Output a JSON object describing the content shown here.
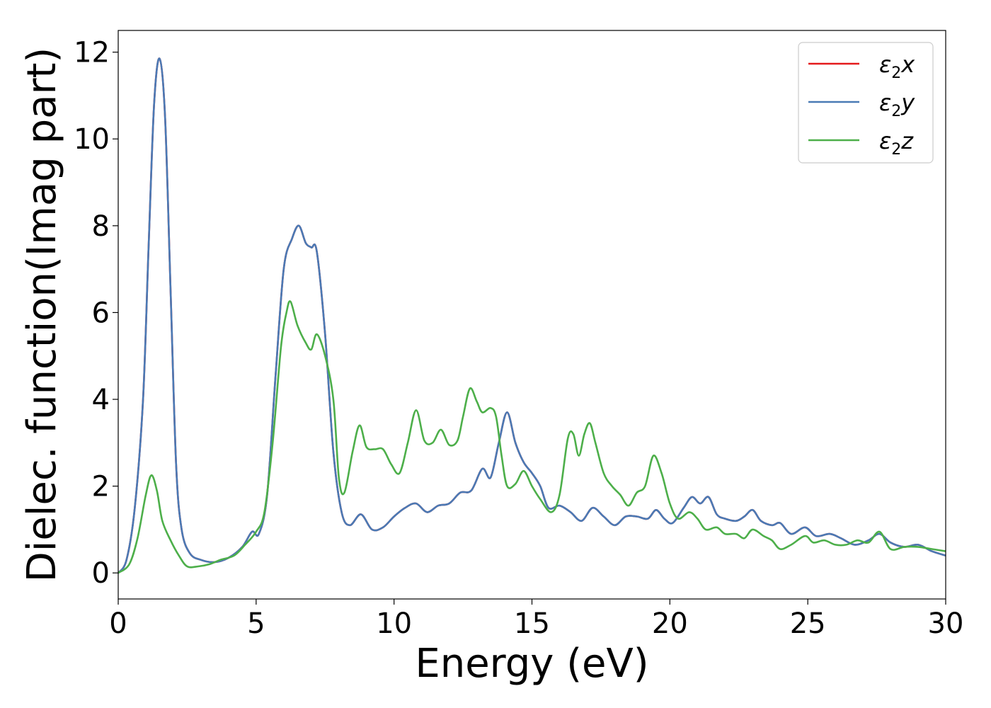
{
  "chart_data": {
    "type": "line",
    "title": "",
    "xlabel": "Energy (eV)",
    "ylabel": "Dielec. function(Imag part)",
    "xlim": [
      0,
      30
    ],
    "ylim": [
      -0.6,
      12.5
    ],
    "xticks": [
      0,
      5,
      10,
      15,
      20,
      25,
      30
    ],
    "yticks": [
      0,
      2,
      4,
      6,
      8,
      10,
      12
    ],
    "xtick_labels": [
      "0",
      "5",
      "10",
      "15",
      "20",
      "25",
      "30"
    ],
    "ytick_labels": [
      "0",
      "2",
      "4",
      "6",
      "8",
      "10",
      "12"
    ],
    "grid": false,
    "legend_position": "top-right",
    "series": [
      {
        "name": "ε2x",
        "label_parts": [
          "ε",
          "2",
          "x"
        ],
        "color": "#e41a1c",
        "points": [
          [
            0,
            0
          ],
          [
            0.3,
            0.3
          ],
          [
            0.6,
            1.5
          ],
          [
            0.9,
            4.0
          ],
          [
            1.1,
            7.5
          ],
          [
            1.3,
            10.8
          ],
          [
            1.5,
            11.85
          ],
          [
            1.7,
            10.5
          ],
          [
            1.9,
            6.5
          ],
          [
            2.1,
            2.5
          ],
          [
            2.3,
            1.0
          ],
          [
            2.6,
            0.45
          ],
          [
            3.0,
            0.3
          ],
          [
            3.5,
            0.25
          ],
          [
            4.0,
            0.35
          ],
          [
            4.5,
            0.6
          ],
          [
            4.85,
            0.95
          ],
          [
            5.1,
            0.9
          ],
          [
            5.4,
            1.8
          ],
          [
            5.7,
            4.5
          ],
          [
            6.0,
            7.0
          ],
          [
            6.3,
            7.7
          ],
          [
            6.55,
            8.0
          ],
          [
            6.8,
            7.6
          ],
          [
            7.0,
            7.5
          ],
          [
            7.2,
            7.4
          ],
          [
            7.5,
            5.5
          ],
          [
            7.8,
            2.8
          ],
          [
            8.1,
            1.4
          ],
          [
            8.4,
            1.1
          ],
          [
            8.8,
            1.35
          ],
          [
            9.2,
            1.0
          ],
          [
            9.6,
            1.05
          ],
          [
            10.0,
            1.3
          ],
          [
            10.4,
            1.5
          ],
          [
            10.8,
            1.6
          ],
          [
            11.2,
            1.4
          ],
          [
            11.6,
            1.55
          ],
          [
            12.0,
            1.6
          ],
          [
            12.4,
            1.85
          ],
          [
            12.8,
            1.9
          ],
          [
            13.2,
            2.4
          ],
          [
            13.5,
            2.2
          ],
          [
            13.8,
            3.0
          ],
          [
            14.1,
            3.7
          ],
          [
            14.4,
            3.0
          ],
          [
            14.7,
            2.55
          ],
          [
            15.0,
            2.3
          ],
          [
            15.3,
            2.0
          ],
          [
            15.6,
            1.5
          ],
          [
            16.0,
            1.55
          ],
          [
            16.4,
            1.4
          ],
          [
            16.8,
            1.2
          ],
          [
            17.2,
            1.5
          ],
          [
            17.6,
            1.3
          ],
          [
            18.0,
            1.1
          ],
          [
            18.4,
            1.3
          ],
          [
            18.8,
            1.3
          ],
          [
            19.2,
            1.25
          ],
          [
            19.5,
            1.45
          ],
          [
            19.8,
            1.25
          ],
          [
            20.1,
            1.15
          ],
          [
            20.5,
            1.5
          ],
          [
            20.8,
            1.75
          ],
          [
            21.1,
            1.6
          ],
          [
            21.4,
            1.75
          ],
          [
            21.7,
            1.35
          ],
          [
            22.0,
            1.25
          ],
          [
            22.4,
            1.2
          ],
          [
            22.7,
            1.3
          ],
          [
            23.0,
            1.45
          ],
          [
            23.3,
            1.2
          ],
          [
            23.7,
            1.1
          ],
          [
            24.0,
            1.15
          ],
          [
            24.4,
            0.9
          ],
          [
            24.9,
            1.05
          ],
          [
            25.3,
            0.85
          ],
          [
            25.8,
            0.9
          ],
          [
            26.2,
            0.8
          ],
          [
            26.7,
            0.65
          ],
          [
            27.2,
            0.75
          ],
          [
            27.6,
            0.9
          ],
          [
            28.0,
            0.7
          ],
          [
            28.5,
            0.6
          ],
          [
            29.0,
            0.65
          ],
          [
            29.5,
            0.5
          ],
          [
            30.0,
            0.4
          ]
        ]
      },
      {
        "name": "ε2y",
        "label_parts": [
          "ε",
          "2",
          "y"
        ],
        "color": "#4a7ab5",
        "points": [
          [
            0,
            0
          ],
          [
            0.3,
            0.3
          ],
          [
            0.6,
            1.5
          ],
          [
            0.9,
            4.0
          ],
          [
            1.1,
            7.5
          ],
          [
            1.3,
            10.8
          ],
          [
            1.5,
            11.85
          ],
          [
            1.7,
            10.5
          ],
          [
            1.9,
            6.5
          ],
          [
            2.1,
            2.5
          ],
          [
            2.3,
            1.0
          ],
          [
            2.6,
            0.45
          ],
          [
            3.0,
            0.3
          ],
          [
            3.5,
            0.25
          ],
          [
            4.0,
            0.35
          ],
          [
            4.5,
            0.6
          ],
          [
            4.85,
            0.95
          ],
          [
            5.1,
            0.9
          ],
          [
            5.4,
            1.8
          ],
          [
            5.7,
            4.5
          ],
          [
            6.0,
            7.0
          ],
          [
            6.3,
            7.7
          ],
          [
            6.55,
            8.0
          ],
          [
            6.8,
            7.6
          ],
          [
            7.0,
            7.5
          ],
          [
            7.2,
            7.4
          ],
          [
            7.5,
            5.5
          ],
          [
            7.8,
            2.8
          ],
          [
            8.1,
            1.4
          ],
          [
            8.4,
            1.1
          ],
          [
            8.8,
            1.35
          ],
          [
            9.2,
            1.0
          ],
          [
            9.6,
            1.05
          ],
          [
            10.0,
            1.3
          ],
          [
            10.4,
            1.5
          ],
          [
            10.8,
            1.6
          ],
          [
            11.2,
            1.4
          ],
          [
            11.6,
            1.55
          ],
          [
            12.0,
            1.6
          ],
          [
            12.4,
            1.85
          ],
          [
            12.8,
            1.9
          ],
          [
            13.2,
            2.4
          ],
          [
            13.5,
            2.2
          ],
          [
            13.8,
            3.0
          ],
          [
            14.1,
            3.7
          ],
          [
            14.4,
            3.0
          ],
          [
            14.7,
            2.55
          ],
          [
            15.0,
            2.3
          ],
          [
            15.3,
            2.0
          ],
          [
            15.6,
            1.5
          ],
          [
            16.0,
            1.55
          ],
          [
            16.4,
            1.4
          ],
          [
            16.8,
            1.2
          ],
          [
            17.2,
            1.5
          ],
          [
            17.6,
            1.3
          ],
          [
            18.0,
            1.1
          ],
          [
            18.4,
            1.3
          ],
          [
            18.8,
            1.3
          ],
          [
            19.2,
            1.25
          ],
          [
            19.5,
            1.45
          ],
          [
            19.8,
            1.25
          ],
          [
            20.1,
            1.15
          ],
          [
            20.5,
            1.5
          ],
          [
            20.8,
            1.75
          ],
          [
            21.1,
            1.6
          ],
          [
            21.4,
            1.75
          ],
          [
            21.7,
            1.35
          ],
          [
            22.0,
            1.25
          ],
          [
            22.4,
            1.2
          ],
          [
            22.7,
            1.3
          ],
          [
            23.0,
            1.45
          ],
          [
            23.3,
            1.2
          ],
          [
            23.7,
            1.1
          ],
          [
            24.0,
            1.15
          ],
          [
            24.4,
            0.9
          ],
          [
            24.9,
            1.05
          ],
          [
            25.3,
            0.85
          ],
          [
            25.8,
            0.9
          ],
          [
            26.2,
            0.8
          ],
          [
            26.7,
            0.65
          ],
          [
            27.2,
            0.75
          ],
          [
            27.6,
            0.9
          ],
          [
            28.0,
            0.7
          ],
          [
            28.5,
            0.6
          ],
          [
            29.0,
            0.65
          ],
          [
            29.5,
            0.5
          ],
          [
            30.0,
            0.4
          ]
        ]
      },
      {
        "name": "ε2z",
        "label_parts": [
          "ε",
          "2",
          "z"
        ],
        "color": "#4daf4a",
        "points": [
          [
            0,
            0
          ],
          [
            0.4,
            0.2
          ],
          [
            0.7,
            0.8
          ],
          [
            1.0,
            1.8
          ],
          [
            1.2,
            2.25
          ],
          [
            1.4,
            1.9
          ],
          [
            1.6,
            1.2
          ],
          [
            1.9,
            0.75
          ],
          [
            2.2,
            0.4
          ],
          [
            2.5,
            0.15
          ],
          [
            2.9,
            0.15
          ],
          [
            3.3,
            0.2
          ],
          [
            3.7,
            0.3
          ],
          [
            4.2,
            0.4
          ],
          [
            4.6,
            0.65
          ],
          [
            5.0,
            0.95
          ],
          [
            5.3,
            1.4
          ],
          [
            5.6,
            3.0
          ],
          [
            5.9,
            5.2
          ],
          [
            6.1,
            6.0
          ],
          [
            6.25,
            6.25
          ],
          [
            6.5,
            5.7
          ],
          [
            6.8,
            5.3
          ],
          [
            7.0,
            5.15
          ],
          [
            7.2,
            5.5
          ],
          [
            7.5,
            5.0
          ],
          [
            7.8,
            4.0
          ],
          [
            8.0,
            2.2
          ],
          [
            8.2,
            1.85
          ],
          [
            8.5,
            2.8
          ],
          [
            8.75,
            3.4
          ],
          [
            9.0,
            2.9
          ],
          [
            9.3,
            2.85
          ],
          [
            9.6,
            2.85
          ],
          [
            9.9,
            2.5
          ],
          [
            10.2,
            2.3
          ],
          [
            10.5,
            3.0
          ],
          [
            10.8,
            3.75
          ],
          [
            11.1,
            3.05
          ],
          [
            11.4,
            3.0
          ],
          [
            11.7,
            3.3
          ],
          [
            12.0,
            2.95
          ],
          [
            12.3,
            3.05
          ],
          [
            12.5,
            3.6
          ],
          [
            12.75,
            4.25
          ],
          [
            13.0,
            3.95
          ],
          [
            13.2,
            3.7
          ],
          [
            13.5,
            3.8
          ],
          [
            13.7,
            3.6
          ],
          [
            13.9,
            2.7
          ],
          [
            14.1,
            2.0
          ],
          [
            14.4,
            2.05
          ],
          [
            14.7,
            2.35
          ],
          [
            15.0,
            2.0
          ],
          [
            15.3,
            1.7
          ],
          [
            15.7,
            1.4
          ],
          [
            16.0,
            1.8
          ],
          [
            16.3,
            3.1
          ],
          [
            16.5,
            3.2
          ],
          [
            16.7,
            2.7
          ],
          [
            16.9,
            3.2
          ],
          [
            17.1,
            3.45
          ],
          [
            17.3,
            3.0
          ],
          [
            17.6,
            2.3
          ],
          [
            17.9,
            2.0
          ],
          [
            18.2,
            1.8
          ],
          [
            18.5,
            1.55
          ],
          [
            18.8,
            1.85
          ],
          [
            19.1,
            2.0
          ],
          [
            19.4,
            2.7
          ],
          [
            19.7,
            2.3
          ],
          [
            20.0,
            1.6
          ],
          [
            20.3,
            1.25
          ],
          [
            20.7,
            1.4
          ],
          [
            21.0,
            1.25
          ],
          [
            21.3,
            1.0
          ],
          [
            21.7,
            1.05
          ],
          [
            22.0,
            0.9
          ],
          [
            22.4,
            0.9
          ],
          [
            22.7,
            0.8
          ],
          [
            23.0,
            1.0
          ],
          [
            23.4,
            0.85
          ],
          [
            23.7,
            0.75
          ],
          [
            24.0,
            0.55
          ],
          [
            24.4,
            0.65
          ],
          [
            24.9,
            0.85
          ],
          [
            25.2,
            0.7
          ],
          [
            25.6,
            0.75
          ],
          [
            26.0,
            0.65
          ],
          [
            26.4,
            0.65
          ],
          [
            26.8,
            0.75
          ],
          [
            27.2,
            0.7
          ],
          [
            27.6,
            0.95
          ],
          [
            28.0,
            0.55
          ],
          [
            28.5,
            0.6
          ],
          [
            29.0,
            0.6
          ],
          [
            29.5,
            0.55
          ],
          [
            30.0,
            0.5
          ]
        ]
      }
    ]
  }
}
